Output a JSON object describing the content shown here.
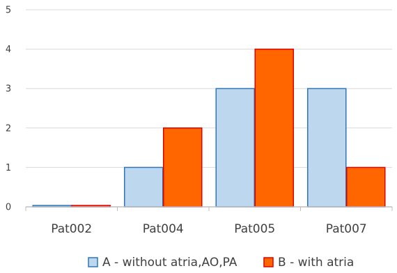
{
  "chart_data": {
    "type": "bar",
    "categories": [
      "Pat002",
      "Pat004",
      "Pat005",
      "Pat007"
    ],
    "series": [
      {
        "name": "A - without atria,AO,PA",
        "values": [
          0,
          1,
          3,
          3
        ],
        "fill": "#bdd7ee",
        "stroke": "#2e75b6"
      },
      {
        "name": "B - with atria",
        "values": [
          0,
          2,
          4,
          1
        ],
        "fill": "#ff6600",
        "stroke": "#e00000"
      }
    ],
    "yticks": [
      0,
      1,
      2,
      3,
      4,
      5
    ],
    "ylim": [
      0,
      5
    ],
    "grid": true,
    "grid_color": "#d9d9d9",
    "legend_position": "bottom"
  }
}
